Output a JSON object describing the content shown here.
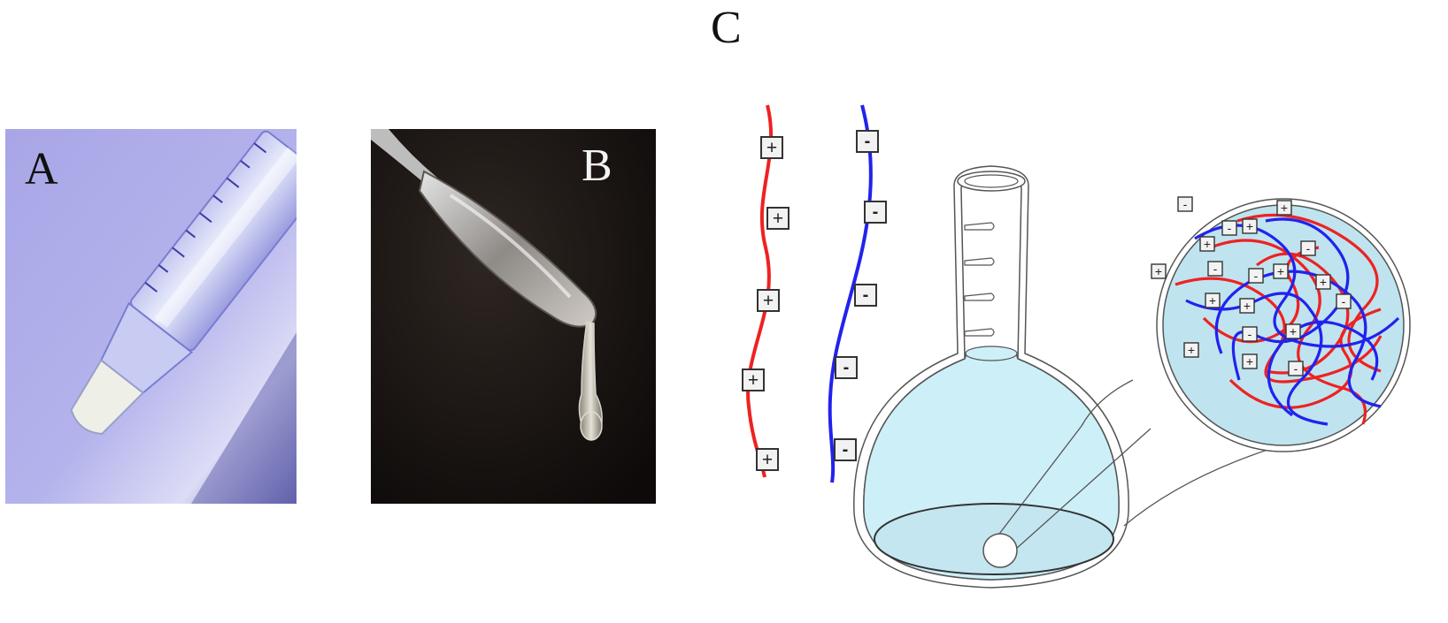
{
  "panels": {
    "a": {
      "label": "A"
    },
    "b": {
      "label": "B"
    },
    "c": {
      "label": "C"
    }
  },
  "charges": {
    "positive": "+",
    "negative": "-"
  },
  "colors": {
    "cationic_polymer": "#ee2222",
    "anionic_polymer": "#2222ee",
    "solution": "#cdeff8",
    "zoom_fill": "#bfe4ef"
  }
}
